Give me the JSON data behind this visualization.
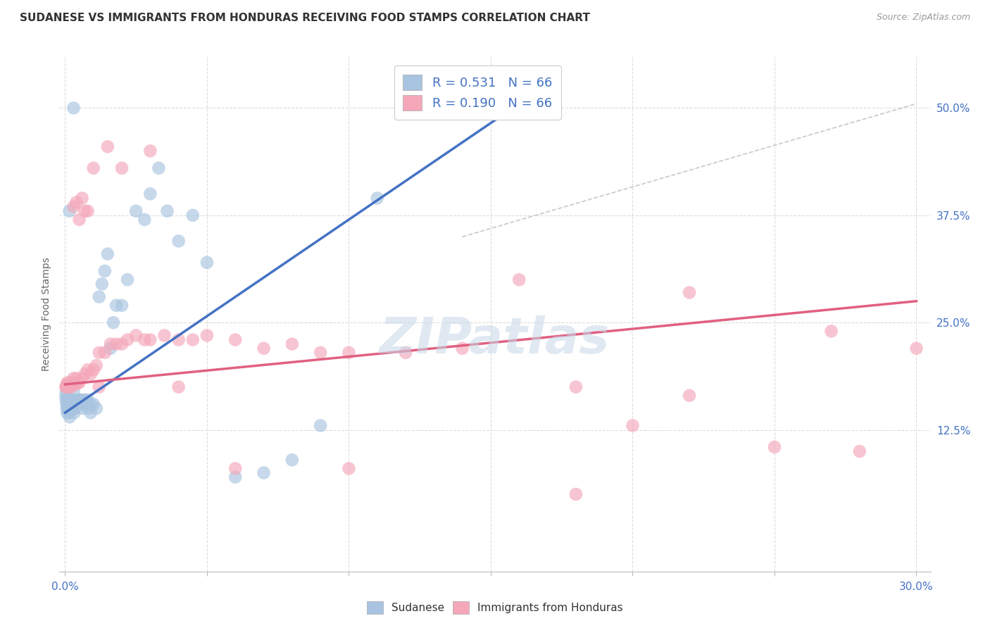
{
  "title": "SUDANESE VS IMMIGRANTS FROM HONDURAS RECEIVING FOOD STAMPS CORRELATION CHART",
  "source": "Source: ZipAtlas.com",
  "ylabel": "Receiving Food Stamps",
  "ytick_labels": [
    "12.5%",
    "25.0%",
    "37.5%",
    "50.0%"
  ],
  "ytick_values": [
    0.125,
    0.25,
    0.375,
    0.5
  ],
  "legend_line1_r": "R = 0.531",
  "legend_line1_n": "N = 66",
  "legend_line2_r": "R = 0.190",
  "legend_line2_n": "N = 66",
  "blue_color": "#A8C4E0",
  "pink_color": "#F4A7B9",
  "blue_line_color": "#4472C4",
  "pink_line_color": "#E06080",
  "diagonal_color": "#C8C8C8",
  "background_color": "#FFFFFF",
  "grid_color": "#DDDDDD",
  "title_fontsize": 11,
  "axis_fontsize": 10,
  "blue_scatter_x": [
    0.0002,
    0.0003,
    0.0004,
    0.0005,
    0.0006,
    0.0007,
    0.0008,
    0.0009,
    0.001,
    0.0012,
    0.0014,
    0.0015,
    0.0016,
    0.0017,
    0.0018,
    0.002,
    0.002,
    0.0022,
    0.0024,
    0.0025,
    0.0026,
    0.0028,
    0.003,
    0.003,
    0.0032,
    0.0035,
    0.004,
    0.0042,
    0.0045,
    0.005,
    0.005,
    0.006,
    0.006,
    0.007,
    0.007,
    0.008,
    0.008,
    0.009,
    0.009,
    0.01,
    0.011,
    0.012,
    0.013,
    0.014,
    0.015,
    0.016,
    0.017,
    0.018,
    0.02,
    0.022,
    0.025,
    0.028,
    0.03,
    0.033,
    0.036,
    0.04,
    0.045,
    0.05,
    0.06,
    0.07,
    0.08,
    0.09,
    0.11,
    0.13,
    0.0015,
    0.003
  ],
  "blue_scatter_y": [
    0.165,
    0.16,
    0.17,
    0.155,
    0.15,
    0.145,
    0.16,
    0.155,
    0.15,
    0.145,
    0.16,
    0.155,
    0.14,
    0.16,
    0.15,
    0.155,
    0.16,
    0.155,
    0.15,
    0.16,
    0.155,
    0.155,
    0.17,
    0.15,
    0.145,
    0.15,
    0.155,
    0.155,
    0.16,
    0.155,
    0.16,
    0.15,
    0.16,
    0.155,
    0.16,
    0.15,
    0.16,
    0.155,
    0.145,
    0.155,
    0.15,
    0.28,
    0.295,
    0.31,
    0.33,
    0.22,
    0.25,
    0.27,
    0.27,
    0.3,
    0.38,
    0.37,
    0.4,
    0.43,
    0.38,
    0.345,
    0.375,
    0.32,
    0.07,
    0.075,
    0.09,
    0.13,
    0.395,
    0.5,
    0.38,
    0.5
  ],
  "pink_scatter_x": [
    0.0002,
    0.0004,
    0.0006,
    0.0008,
    0.001,
    0.0012,
    0.0015,
    0.0018,
    0.002,
    0.0022,
    0.0025,
    0.003,
    0.0035,
    0.004,
    0.0045,
    0.005,
    0.006,
    0.007,
    0.008,
    0.009,
    0.01,
    0.011,
    0.012,
    0.014,
    0.016,
    0.018,
    0.02,
    0.022,
    0.025,
    0.028,
    0.03,
    0.035,
    0.04,
    0.045,
    0.05,
    0.06,
    0.07,
    0.08,
    0.09,
    0.1,
    0.12,
    0.14,
    0.16,
    0.18,
    0.2,
    0.22,
    0.25,
    0.28,
    0.003,
    0.004,
    0.005,
    0.006,
    0.007,
    0.008,
    0.01,
    0.012,
    0.015,
    0.02,
    0.03,
    0.04,
    0.06,
    0.1,
    0.18,
    0.27,
    0.3,
    0.22
  ],
  "pink_scatter_y": [
    0.175,
    0.175,
    0.178,
    0.18,
    0.178,
    0.175,
    0.175,
    0.178,
    0.18,
    0.175,
    0.178,
    0.185,
    0.178,
    0.185,
    0.18,
    0.18,
    0.185,
    0.19,
    0.195,
    0.19,
    0.195,
    0.2,
    0.215,
    0.215,
    0.225,
    0.225,
    0.225,
    0.23,
    0.235,
    0.23,
    0.23,
    0.235,
    0.23,
    0.23,
    0.235,
    0.23,
    0.22,
    0.225,
    0.215,
    0.215,
    0.215,
    0.22,
    0.3,
    0.175,
    0.13,
    0.165,
    0.105,
    0.1,
    0.385,
    0.39,
    0.37,
    0.395,
    0.38,
    0.38,
    0.43,
    0.175,
    0.455,
    0.43,
    0.45,
    0.175,
    0.08,
    0.08,
    0.05,
    0.24,
    0.22,
    0.285
  ],
  "blue_line_x": [
    0.0,
    0.16
  ],
  "blue_line_y": [
    0.145,
    0.505
  ],
  "pink_line_x": [
    0.0,
    0.3
  ],
  "pink_line_y": [
    0.178,
    0.275
  ],
  "diag_line_x": [
    0.14,
    0.3
  ],
  "diag_line_y": [
    0.35,
    0.505
  ],
  "xlim": [
    -0.002,
    0.305
  ],
  "ylim": [
    -0.04,
    0.56
  ],
  "xtick_positions": [
    0.0,
    0.05,
    0.1,
    0.15,
    0.2,
    0.25,
    0.3
  ]
}
